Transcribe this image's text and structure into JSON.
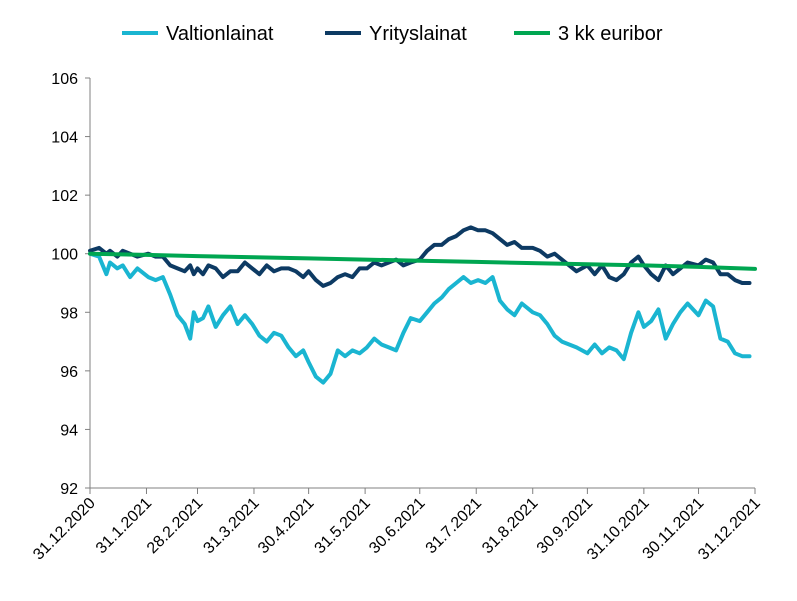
{
  "chart_data": {
    "type": "line",
    "title": "",
    "xlabel": "",
    "ylabel": "",
    "ylim": [
      92,
      106
    ],
    "yticks": [
      "92",
      "94",
      "96",
      "98",
      "100",
      "102",
      "104",
      "106"
    ],
    "xticks": [
      "31.12.2020",
      "31.1.2021",
      "28.2.2021",
      "31.3.2021",
      "30.4.2021",
      "31.5.2021",
      "30.6.2021",
      "31.7.2021",
      "31.8.2021",
      "30.9.2021",
      "31.10.2021",
      "30.11.2021",
      "31.12.2021"
    ],
    "grid": false,
    "legend_position": "top",
    "series": [
      {
        "name": "Valtionlainat",
        "color": "#1ab5d1",
        "x": [
          "31.12.2020",
          "5.1.2021",
          "9.1.2021",
          "11.1.2021",
          "15.1.2021",
          "18.1.2021",
          "22.1.2021",
          "26.1.2021",
          "1.2.2021",
          "5.2.2021",
          "9.2.2021",
          "13.2.2021",
          "17.2.2021",
          "21.2.2021",
          "24.2.2021",
          "26.2.2021",
          "28.2.2021",
          "3.3.2021",
          "6.3.2021",
          "10.3.2021",
          "14.3.2021",
          "18.3.2021",
          "22.3.2021",
          "26.3.2021",
          "30.3.2021",
          "3.4.2021",
          "7.4.2021",
          "11.4.2021",
          "15.4.2021",
          "19.4.2021",
          "23.4.2021",
          "27.4.2021",
          "30.4.2021",
          "4.5.2021",
          "8.5.2021",
          "12.5.2021",
          "16.5.2021",
          "20.5.2021",
          "24.5.2021",
          "28.5.2021",
          "1.6.2021",
          "5.6.2021",
          "9.6.2021",
          "13.6.2021",
          "17.6.2021",
          "21.6.2021",
          "25.6.2021",
          "30.6.2021",
          "4.7.2021",
          "8.7.2021",
          "12.7.2021",
          "16.7.2021",
          "20.7.2021",
          "24.7.2021",
          "28.7.2021",
          "1.8.2021",
          "5.8.2021",
          "9.8.2021",
          "13.8.2021",
          "17.8.2021",
          "21.8.2021",
          "25.8.2021",
          "31.8.2021",
          "4.9.2021",
          "8.9.2021",
          "12.9.2021",
          "16.9.2021",
          "20.9.2021",
          "24.9.2021",
          "30.9.2021",
          "4.10.2021",
          "8.10.2021",
          "12.10.2021",
          "16.10.2021",
          "20.10.2021",
          "24.10.2021",
          "28.10.2021",
          "31.10.2021",
          "4.11.2021",
          "8.11.2021",
          "12.11.2021",
          "16.11.2021",
          "20.11.2021",
          "24.11.2021",
          "30.11.2021",
          "4.12.2021",
          "8.12.2021",
          "12.12.2021",
          "16.12.2021",
          "20.12.2021",
          "24.12.2021",
          "28.12.2021"
        ],
        "y": [
          100.0,
          99.9,
          99.3,
          99.7,
          99.5,
          99.6,
          99.2,
          99.5,
          99.2,
          99.1,
          99.2,
          98.6,
          97.9,
          97.6,
          97.1,
          98.0,
          97.7,
          97.8,
          98.2,
          97.5,
          97.9,
          98.2,
          97.6,
          97.9,
          97.6,
          97.2,
          97.0,
          97.3,
          97.2,
          96.8,
          96.5,
          96.7,
          96.3,
          95.8,
          95.6,
          95.9,
          96.7,
          96.5,
          96.7,
          96.6,
          96.8,
          97.1,
          96.9,
          96.8,
          96.7,
          97.3,
          97.8,
          97.7,
          98.0,
          98.3,
          98.5,
          98.8,
          99.0,
          99.2,
          99.0,
          99.1,
          99.0,
          99.2,
          98.4,
          98.1,
          97.9,
          98.3,
          98.0,
          97.9,
          97.6,
          97.2,
          97.0,
          96.9,
          96.8,
          96.6,
          96.9,
          96.6,
          96.8,
          96.7,
          96.4,
          97.3,
          98.0,
          97.5,
          97.7,
          98.1,
          97.1,
          97.6,
          98.0,
          98.3,
          97.9,
          98.4,
          98.2,
          97.1,
          97.0,
          96.6,
          96.5,
          96.5
        ]
      },
      {
        "name": "Yrityslainat",
        "color": "#0d3a63",
        "x": [
          "31.12.2020",
          "5.1.2021",
          "9.1.2021",
          "11.1.2021",
          "15.1.2021",
          "18.1.2021",
          "22.1.2021",
          "26.1.2021",
          "1.2.2021",
          "5.2.2021",
          "9.2.2021",
          "13.2.2021",
          "17.2.2021",
          "21.2.2021",
          "24.2.2021",
          "26.2.2021",
          "28.2.2021",
          "3.3.2021",
          "6.3.2021",
          "10.3.2021",
          "14.3.2021",
          "18.3.2021",
          "22.3.2021",
          "26.3.2021",
          "30.3.2021",
          "3.4.2021",
          "7.4.2021",
          "11.4.2021",
          "15.4.2021",
          "19.4.2021",
          "23.4.2021",
          "27.4.2021",
          "30.4.2021",
          "4.5.2021",
          "8.5.2021",
          "12.5.2021",
          "16.5.2021",
          "20.5.2021",
          "24.5.2021",
          "28.5.2021",
          "1.6.2021",
          "5.6.2021",
          "9.6.2021",
          "13.6.2021",
          "17.6.2021",
          "21.6.2021",
          "25.6.2021",
          "30.6.2021",
          "4.7.2021",
          "8.7.2021",
          "12.7.2021",
          "16.7.2021",
          "20.7.2021",
          "24.7.2021",
          "28.7.2021",
          "1.8.2021",
          "5.8.2021",
          "9.8.2021",
          "13.8.2021",
          "17.8.2021",
          "21.8.2021",
          "25.8.2021",
          "31.8.2021",
          "4.9.2021",
          "8.9.2021",
          "12.9.2021",
          "16.9.2021",
          "20.9.2021",
          "24.9.2021",
          "30.9.2021",
          "4.10.2021",
          "8.10.2021",
          "12.10.2021",
          "16.10.2021",
          "20.10.2021",
          "24.10.2021",
          "28.10.2021",
          "31.10.2021",
          "4.11.2021",
          "8.11.2021",
          "12.11.2021",
          "16.11.2021",
          "20.11.2021",
          "24.11.2021",
          "30.11.2021",
          "4.12.2021",
          "8.12.2021",
          "12.12.2021",
          "16.12.2021",
          "20.12.2021",
          "24.12.2021",
          "28.12.2021"
        ],
        "y": [
          100.1,
          100.2,
          100.0,
          100.1,
          99.9,
          100.1,
          100.0,
          99.9,
          100.0,
          99.9,
          99.9,
          99.6,
          99.5,
          99.4,
          99.6,
          99.3,
          99.5,
          99.3,
          99.6,
          99.5,
          99.2,
          99.4,
          99.4,
          99.7,
          99.5,
          99.3,
          99.6,
          99.4,
          99.5,
          99.5,
          99.4,
          99.2,
          99.4,
          99.1,
          98.9,
          99.0,
          99.2,
          99.3,
          99.2,
          99.5,
          99.5,
          99.7,
          99.6,
          99.7,
          99.8,
          99.6,
          99.7,
          99.8,
          100.1,
          100.3,
          100.3,
          100.5,
          100.6,
          100.8,
          100.9,
          100.8,
          100.8,
          100.7,
          100.5,
          100.3,
          100.4,
          100.2,
          100.2,
          100.1,
          99.9,
          100.0,
          99.8,
          99.6,
          99.4,
          99.6,
          99.3,
          99.6,
          99.2,
          99.1,
          99.3,
          99.7,
          99.9,
          99.6,
          99.3,
          99.1,
          99.6,
          99.3,
          99.5,
          99.7,
          99.6,
          99.8,
          99.7,
          99.3,
          99.3,
          99.1,
          99.0,
          99.0
        ]
      },
      {
        "name": "3 kk euribor",
        "color": "#00a651",
        "x": [
          "31.12.2020",
          "31.1.2021",
          "28.2.2021",
          "31.3.2021",
          "30.4.2021",
          "31.5.2021",
          "30.6.2021",
          "31.7.2021",
          "31.8.2021",
          "30.9.2021",
          "31.10.2021",
          "30.11.2021",
          "31.12.2021"
        ],
        "y": [
          100.0,
          99.96,
          99.92,
          99.88,
          99.84,
          99.8,
          99.76,
          99.72,
          99.68,
          99.64,
          99.6,
          99.55,
          99.48
        ]
      }
    ]
  }
}
